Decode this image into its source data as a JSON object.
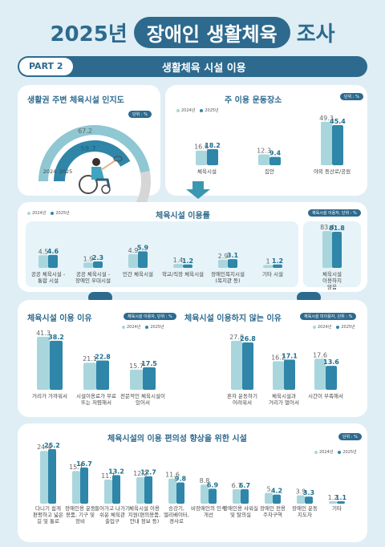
{
  "header": {
    "year": "2025년",
    "title": "장애인 생활체육",
    "suffix": "조사"
  },
  "part": {
    "tag": "PART 2",
    "title": "생활체육 시설 이용"
  },
  "legend": {
    "y2024": "2024년",
    "y2025": "2025년"
  },
  "colors": {
    "y2024": "#a9d6dd",
    "y2025": "#2f86a8",
    "accent": "#2d6a8e"
  },
  "chart_data": [
    {
      "id": "awareness",
      "type": "pie",
      "title": "생활권 주변 체육시설 인지도",
      "unit": "단위 : %",
      "series": [
        {
          "name": "2024",
          "value": 59.7
        },
        {
          "name": "2025",
          "value": 67.2
        }
      ]
    },
    {
      "id": "main_place",
      "type": "bar",
      "title": "주 이용 운동장소",
      "unit": "단위 : %",
      "categories": [
        "체육시설",
        "집안",
        "야외 등산로/공원"
      ],
      "series": [
        {
          "name": "2024년",
          "values": [
            16.6,
            12.3,
            49.3
          ]
        },
        {
          "name": "2025년",
          "values": [
            18.2,
            9.4,
            45.4
          ]
        }
      ]
    },
    {
      "id": "facility_use",
      "type": "bar",
      "title": "체육시설 이용률",
      "unit": "체육시설 이용자, 단위 : %",
      "categories": [
        "공공 체육시설 - 통합 시설",
        "공공 체육시설 - 장애인 우대시설",
        "민간 체육시설",
        "학교/직장 체육시설",
        "장애인복지시설 (복지관 등)",
        "기타 시설"
      ],
      "series": [
        {
          "name": "2024년",
          "values": [
            4.5,
            1.9,
            4.9,
            1.4,
            2.9,
            1.0
          ]
        },
        {
          "name": "2025년",
          "values": [
            4.6,
            2.3,
            5.9,
            1.2,
            3.1,
            1.2
          ]
        }
      ],
      "side": {
        "label": "체육시설 이용하지 않음",
        "values": [
          83.4,
          81.8
        ]
      }
    },
    {
      "id": "use_reason",
      "type": "bar",
      "title": "체육시설 이용 이유",
      "unit": "체육시설 이용자, 단위 : %",
      "categories": [
        "거리가 가까워서",
        "시설이용료가 무료 또는 저렴해서",
        "전문적인 체육시설이 있어서"
      ],
      "series": [
        {
          "name": "2024년",
          "values": [
            41.3,
            21.1,
            15.7
          ]
        },
        {
          "name": "2025년",
          "values": [
            38.2,
            22.8,
            17.5
          ]
        }
      ]
    },
    {
      "id": "nonuse_reason",
      "type": "bar",
      "title": "체육시설 이용하지 않는 이유",
      "unit": "체육시설 미이용자, 단위 : %",
      "categories": [
        "혼자 운동하기 어려워서",
        "체육시설과 거리가 멀어서",
        "시간이 부족해서"
      ],
      "series": [
        {
          "name": "2024년",
          "values": [
            27.8,
            16.2,
            17.6
          ]
        },
        {
          "name": "2025년",
          "values": [
            26.8,
            17.1,
            13.6
          ]
        }
      ]
    },
    {
      "id": "improvement",
      "type": "bar",
      "title": "체육시설의 이용 편의성 향상을 위한 시설",
      "unit": "단위 : %",
      "categories": [
        "다니기 쉽게 편평하고 넓은 길 및 통로",
        "장애인용 운동 용품, 기구 및 장비",
        "들어가고 나가기 쉬운 체육관 출입구",
        "체육시설 이용 지원(편의용품, 안내 정보 등)",
        "승강기, 엘리베이터, 경사로",
        "비장애인의 인식 개선",
        "장애인용 샤워실 및 탈의실",
        "장애인 전용 주차구역",
        "장애인 운동 지도자",
        "기타"
      ],
      "series": [
        {
          "name": "2024년",
          "values": [
            24.4,
            15.1,
            11.1,
            12.2,
            11.6,
            8.8,
            6.7,
            5.0,
            3.9,
            1.2
          ]
        },
        {
          "name": "2025년",
          "values": [
            25.2,
            16.7,
            13.2,
            12.7,
            9.8,
            6.9,
            6.7,
            4.2,
            3.3,
            1.1
          ]
        }
      ]
    }
  ]
}
